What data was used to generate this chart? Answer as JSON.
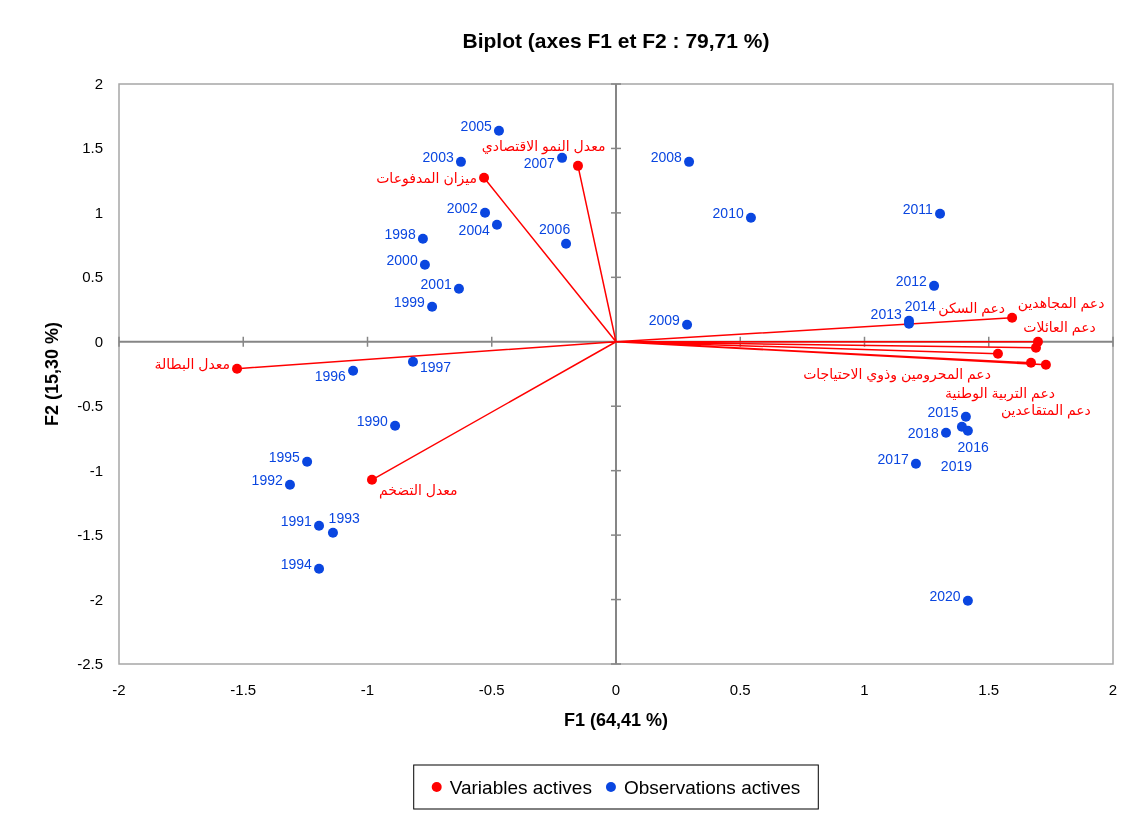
{
  "chart_data": {
    "type": "scatter",
    "title": "Biplot (axes F1 et F2 : 79,71 %)",
    "xlabel": "F1 (64,41 %)",
    "ylabel": "F2 (15,30 %)",
    "xlim": [
      -2,
      2
    ],
    "ylim": [
      -2.5,
      2
    ],
    "xticks": [
      -2,
      -1.5,
      -1,
      -0.5,
      0,
      0.5,
      1,
      1.5,
      2
    ],
    "yticks": [
      -2.5,
      -2,
      -1.5,
      -1,
      -0.5,
      0,
      0.5,
      1,
      1.5,
      2
    ],
    "legend": "bottom",
    "series": [
      {
        "type": "line",
        "color": "#ff0000",
        "marker": "none",
        "x": [
          0,
          -0.531,
          0,
          -0.153,
          0,
          -1.525,
          0,
          -0.982,
          0,
          1.594,
          0,
          1.698,
          0,
          1.69,
          0,
          1.537,
          0,
          1.67,
          0,
          1.73
        ],
        "values": [
          0,
          1.272,
          0,
          1.365,
          0,
          -0.209,
          0,
          -1.071,
          0,
          0.186,
          0,
          0.0,
          0,
          -0.047,
          0,
          -0.093,
          0,
          -0.163,
          0,
          -0.178
        ]
      },
      {
        "name": "Variables actives",
        "color": "#ff0000",
        "marker": "circle",
        "x": [
          -0.531,
          -0.153,
          -1.525,
          -0.982,
          1.594,
          1.698,
          1.69,
          1.537,
          1.67,
          1.73
        ],
        "values": [
          1.272,
          1.365,
          -0.209,
          -1.071,
          0.186,
          0.0,
          -0.047,
          -0.093,
          -0.163,
          -0.178
        ]
      },
      {
        "name": "Observations actives",
        "color": "#0a46e0",
        "marker": "circle",
        "x": [
          -0.889,
          -1.195,
          -1.312,
          -1.139,
          -1.195,
          -1.243,
          -1.058,
          -0.817,
          -0.777,
          -0.74,
          -0.769,
          -0.632,
          -0.527,
          -0.624,
          -0.479,
          -0.471,
          -0.201,
          -0.217,
          0.294,
          0.286,
          0.543,
          1.304,
          1.28,
          1.179,
          1.179,
          1.408,
          1.392,
          1.207,
          1.328,
          1.416,
          1.416
        ],
        "values": [
          -0.652,
          -1.427,
          -1.109,
          -1.482,
          -1.761,
          -0.931,
          -0.225,
          -0.155,
          0.799,
          0.272,
          0.597,
          0.411,
          1.001,
          1.396,
          0.908,
          1.637,
          0.76,
          1.427,
          1.396,
          0.132,
          0.962,
          0.993,
          0.434,
          0.14,
          0.163,
          -0.582,
          -0.659,
          -0.946,
          -0.706,
          -0.69,
          -2.009
        ]
      }
    ],
    "annotations": [
      {
        "text": "ميزان المدفوعات",
        "x": -0.531,
        "y": 1.272
      },
      {
        "text": "معدل النمو الاقتصادي",
        "x": -0.153,
        "y": 1.365
      },
      {
        "text": "معدل البطالة",
        "x": -1.525,
        "y": -0.209
      },
      {
        "text": "معدل التضخم",
        "x": -0.982,
        "y": -1.071
      },
      {
        "text": "دعم السكن",
        "x": 1.594,
        "y": 0.186
      },
      {
        "text": "دعم العائلات",
        "x": 1.698,
        "y": 0.0
      },
      {
        "text": "دعم المجاهدين",
        "x": 1.69,
        "y": -0.047
      },
      {
        "text": "دعم المحرومين وذوي الاحتياجات",
        "x": 1.537,
        "y": -0.093
      },
      {
        "text": "دعم التربية الوطنية",
        "x": 1.67,
        "y": -0.163
      },
      {
        "text": "دعم المتقاعدين",
        "x": 1.73,
        "y": -0.178
      },
      {
        "text": "1990",
        "x": -0.889,
        "y": -0.652
      },
      {
        "text": "1991",
        "x": -1.195,
        "y": -1.427
      },
      {
        "text": "1992",
        "x": -1.312,
        "y": -1.109
      },
      {
        "text": "1993",
        "x": -1.139,
        "y": -1.482
      },
      {
        "text": "1994",
        "x": -1.195,
        "y": -1.761
      },
      {
        "text": "1995",
        "x": -1.243,
        "y": -0.931
      },
      {
        "text": "1996",
        "x": -1.058,
        "y": -0.225
      },
      {
        "text": "1997",
        "x": -0.817,
        "y": -0.155
      },
      {
        "text": "1998",
        "x": -0.777,
        "y": 0.799
      },
      {
        "text": "1999",
        "x": -0.74,
        "y": 0.272
      },
      {
        "text": "2000",
        "x": -0.769,
        "y": 0.597
      },
      {
        "text": "2001",
        "x": -0.632,
        "y": 0.411
      },
      {
        "text": "2002",
        "x": -0.527,
        "y": 1.001
      },
      {
        "text": "2003",
        "x": -0.624,
        "y": 1.396
      },
      {
        "text": "2004",
        "x": -0.479,
        "y": 0.908
      },
      {
        "text": "2005",
        "x": -0.471,
        "y": 1.637
      },
      {
        "text": "2006",
        "x": -0.201,
        "y": 0.76
      },
      {
        "text": "2007",
        "x": -0.217,
        "y": 1.427
      },
      {
        "text": "2008",
        "x": 0.294,
        "y": 1.396
      },
      {
        "text": "2009",
        "x": 0.286,
        "y": 0.132
      },
      {
        "text": "2010",
        "x": 0.543,
        "y": 0.962
      },
      {
        "text": "2011",
        "x": 1.304,
        "y": 0.993
      },
      {
        "text": "2012",
        "x": 1.28,
        "y": 0.434
      },
      {
        "text": "2013",
        "x": 1.179,
        "y": 0.14
      },
      {
        "text": "2014",
        "x": 1.179,
        "y": 0.163
      },
      {
        "text": "2015",
        "x": 1.408,
        "y": -0.582
      },
      {
        "text": "2016",
        "x": 1.392,
        "y": -0.659
      },
      {
        "text": "2017",
        "x": 1.207,
        "y": -0.946
      },
      {
        "text": "2018",
        "x": 1.328,
        "y": -0.706
      },
      {
        "text": "2019",
        "x": 1.416,
        "y": -0.69
      },
      {
        "text": "2020",
        "x": 1.416,
        "y": -2.009
      }
    ]
  }
}
